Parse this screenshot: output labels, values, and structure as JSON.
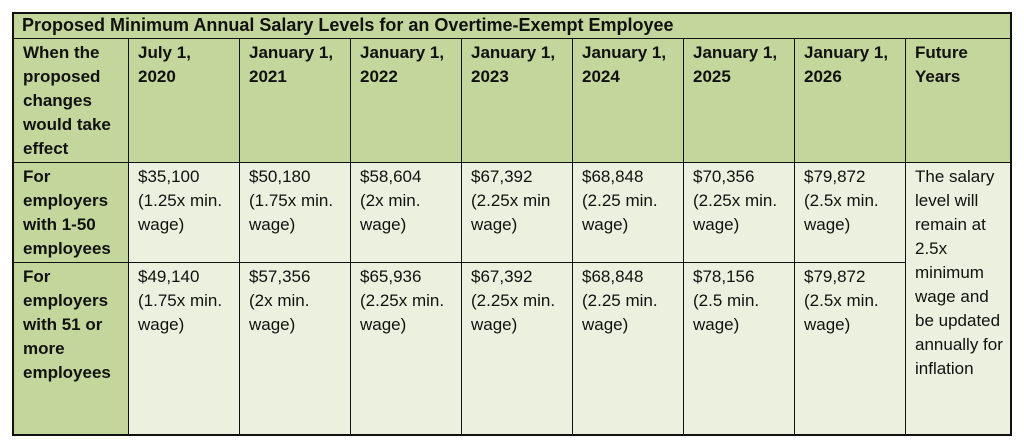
{
  "table": {
    "title": "Proposed Minimum Annual Salary Levels for an Overtime-Exempt Employee",
    "headers": [
      "When the proposed changes would take effect",
      "July 1, 2020",
      "January 1, 2021",
      "January 1, 2022",
      "January 1, 2023",
      "January 1, 2024",
      "January 1, 2025",
      "January 1, 2026",
      "Future Years"
    ],
    "rows": [
      {
        "label": "For employers with 1-50 employees",
        "cells": [
          {
            "amount": "$35,100",
            "note": "(1.25x min. wage)"
          },
          {
            "amount": "$50,180",
            "note": "(1.75x min. wage)"
          },
          {
            "amount": "$58,604",
            "note": "(2x min. wage)"
          },
          {
            "amount": "$67,392",
            "note": "(2.25x min wage)"
          },
          {
            "amount": "$68,848",
            "note": "(2.25 min. wage)"
          },
          {
            "amount": "$70,356",
            "note": "(2.25x min. wage)"
          },
          {
            "amount": "$79,872",
            "note": "(2.5x min. wage)"
          }
        ]
      },
      {
        "label": "For employers with 51 or more employees",
        "cells": [
          {
            "amount": "$49,140",
            "note": "(1.75x min. wage)"
          },
          {
            "amount": "$57,356",
            "note": "(2x min. wage)"
          },
          {
            "amount": "$65,936",
            "note": "(2.25x min. wage)"
          },
          {
            "amount": "$67,392",
            "note": "(2.25x min. wage)"
          },
          {
            "amount": "$68,848",
            "note": "(2.25 min. wage)"
          },
          {
            "amount": "$78,156",
            "note": "(2.5 min. wage)"
          },
          {
            "amount": "$79,872",
            "note": "(2.5x min. wage)"
          }
        ]
      }
    ],
    "future_note": "The salary level will remain at 2.5x minimum wage and be updated annually for inflation"
  },
  "colors": {
    "header_bg": "#c3d69b",
    "data_bg": "#ebf1de",
    "border": "#111111"
  }
}
